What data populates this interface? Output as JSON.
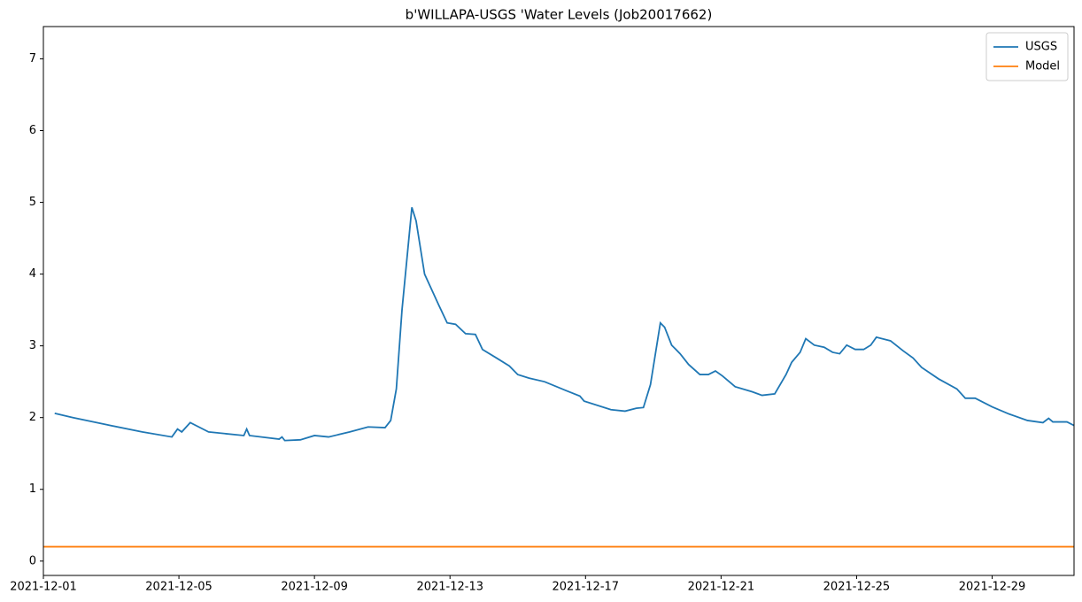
{
  "chart_data": {
    "type": "line",
    "title": "b'WILLAPA-USGS   'Water Levels (Job20017662)",
    "xlim": [
      "2021-12-01 00:00",
      "2021-12-31 10:00"
    ],
    "xticks": [
      "2021-12-01",
      "2021-12-05",
      "2021-12-09",
      "2021-12-13",
      "2021-12-17",
      "2021-12-21",
      "2021-12-25",
      "2021-12-29"
    ],
    "ylim": [
      -0.2,
      7.45
    ],
    "yticks": [
      0,
      1,
      2,
      3,
      4,
      5,
      6,
      7
    ],
    "legend": "upper right",
    "grid": false,
    "series": [
      {
        "name": "USGS",
        "color": "#1f77b4",
        "x": [
          "2021-12-01 08:00",
          "2021-12-01 21:00",
          "2021-12-02 21:00",
          "2021-12-03 22:00",
          "2021-12-04 19:00",
          "2021-12-04 23:00",
          "2021-12-05 02:00",
          "2021-12-05 08:00",
          "2021-12-05 21:00",
          "2021-12-06 22:00",
          "2021-12-07 00:00",
          "2021-12-07 02:00",
          "2021-12-07 23:00",
          "2021-12-08 01:00",
          "2021-12-08 03:00",
          "2021-12-08 14:00",
          "2021-12-09 00:00",
          "2021-12-09 10:00",
          "2021-12-10 01:00",
          "2021-12-10 14:00",
          "2021-12-11 02:00",
          "2021-12-11 06:00",
          "2021-12-11 10:00",
          "2021-12-11 14:00",
          "2021-12-11 21:00",
          "2021-12-12 00:00",
          "2021-12-12 06:00",
          "2021-12-12 16:00",
          "2021-12-12 22:00",
          "2021-12-13 04:00",
          "2021-12-13 11:00",
          "2021-12-13 18:00",
          "2021-12-13 23:00",
          "2021-12-14 09:00",
          "2021-12-14 18:00",
          "2021-12-15 00:00",
          "2021-12-15 08:00",
          "2021-12-15 19:00",
          "2021-12-16 11:00",
          "2021-12-16 20:00",
          "2021-12-16 23:00",
          "2021-12-17 18:00",
          "2021-12-18 04:00",
          "2021-12-18 12:00",
          "2021-12-18 17:00",
          "2021-12-18 22:00",
          "2021-12-19 05:00",
          "2021-12-19 08:00",
          "2021-12-19 13:00",
          "2021-12-19 19:00",
          "2021-12-20 01:00",
          "2021-12-20 09:00",
          "2021-12-20 15:00",
          "2021-12-20 20:00",
          "2021-12-21 01:00",
          "2021-12-21 10:00",
          "2021-12-21 22:00",
          "2021-12-22 05:00",
          "2021-12-22 14:00",
          "2021-12-22 22:00",
          "2021-12-23 02:00",
          "2021-12-23 08:00",
          "2021-12-23 12:00",
          "2021-12-23 18:00",
          "2021-12-24 01:00",
          "2021-12-24 07:00",
          "2021-12-24 12:00",
          "2021-12-24 17:00",
          "2021-12-24 23:00",
          "2021-12-25 05:00",
          "2021-12-25 10:00",
          "2021-12-25 14:00",
          "2021-12-26 00:00",
          "2021-12-26 09:00",
          "2021-12-26 16:00",
          "2021-12-26 22:00",
          "2021-12-27 10:00",
          "2021-12-27 23:00",
          "2021-12-28 05:00",
          "2021-12-28 12:00",
          "2021-12-29 00:00",
          "2021-12-29 12:00",
          "2021-12-30 01:00",
          "2021-12-30 12:00",
          "2021-12-30 16:00",
          "2021-12-30 19:00",
          "2021-12-31 05:00",
          "2021-12-31 10:00"
        ],
        "values": [
          2.06,
          2.0,
          1.9,
          1.8,
          1.73,
          1.84,
          1.8,
          1.93,
          1.8,
          1.75,
          1.84,
          1.75,
          1.7,
          1.73,
          1.68,
          1.69,
          1.75,
          1.73,
          1.8,
          1.87,
          1.86,
          1.96,
          2.4,
          3.5,
          4.93,
          4.74,
          4.0,
          3.57,
          3.32,
          3.3,
          3.17,
          3.16,
          2.95,
          2.83,
          2.72,
          2.6,
          2.55,
          2.5,
          2.37,
          2.3,
          2.23,
          2.11,
          2.09,
          2.13,
          2.14,
          2.46,
          3.32,
          3.26,
          3.01,
          2.89,
          2.74,
          2.6,
          2.6,
          2.65,
          2.58,
          2.43,
          2.36,
          2.31,
          2.33,
          2.6,
          2.77,
          2.91,
          3.1,
          3.01,
          2.98,
          2.91,
          2.89,
          3.01,
          2.95,
          2.95,
          3.01,
          3.12,
          3.07,
          2.93,
          2.83,
          2.7,
          2.54,
          2.4,
          2.27,
          2.27,
          2.15,
          2.05,
          1.96,
          1.93,
          1.99,
          1.94,
          1.94,
          1.89
        ]
      },
      {
        "name": "Model",
        "color": "#ff7f0e",
        "x": [
          "2021-12-01 00:00",
          "2021-12-31 10:00"
        ],
        "values": [
          0.2,
          0.2
        ]
      }
    ]
  }
}
